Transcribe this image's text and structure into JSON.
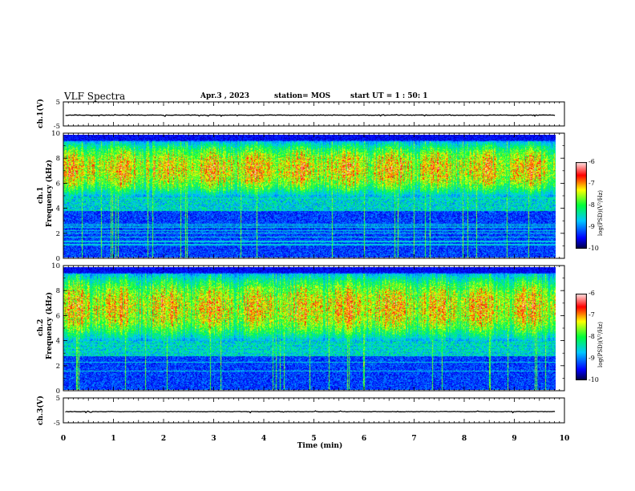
{
  "header": {
    "title": "VLF Spectra",
    "date": "Apr.3  , 2023",
    "station": "station= MOS",
    "start_ut": "start  UT =   1 : 50: 1"
  },
  "chart_data": [
    {
      "type": "line",
      "ylabel": "ch.1(V)",
      "ylim": [
        -5,
        5
      ],
      "yticks": [
        "5",
        "-5"
      ],
      "level": -0.5
    },
    {
      "type": "heatmap",
      "ylabel": "ch.1\nFrequency (kHz)",
      "ylim": [
        0,
        10
      ],
      "yticks": [
        "0",
        "2",
        "4",
        "6",
        "8",
        "10"
      ],
      "colorbar": {
        "label": "log(PSD)(V²/Hz)",
        "range": [
          -10,
          -6
        ],
        "ticks": [
          "-6",
          "-7",
          "-8",
          "-9",
          "-10"
        ]
      },
      "noise_band_khz": [
        5.0,
        9.5
      ]
    },
    {
      "type": "heatmap",
      "ylabel": "ch.2\nFrequency (kHz)",
      "ylim": [
        0,
        10
      ],
      "yticks": [
        "0",
        "2",
        "4",
        "6",
        "8",
        "10"
      ],
      "colorbar": {
        "label": "log(PSD)(V²/Hz)",
        "range": [
          -10,
          -6
        ],
        "ticks": [
          "-6",
          "-7",
          "-8",
          "-9",
          "-10"
        ]
      },
      "noise_band_khz": [
        4.0,
        9.5
      ]
    },
    {
      "type": "line",
      "ylabel": "ch.3(V)",
      "ylim": [
        -5,
        5
      ],
      "yticks": [
        "5",
        "-5"
      ],
      "level": -0.5
    }
  ],
  "xaxis": {
    "label": "Time  (min)",
    "xlim": [
      0,
      10
    ],
    "ticks": [
      "0",
      "1",
      "2",
      "3",
      "4",
      "5",
      "6",
      "7",
      "8",
      "9",
      "10"
    ]
  }
}
